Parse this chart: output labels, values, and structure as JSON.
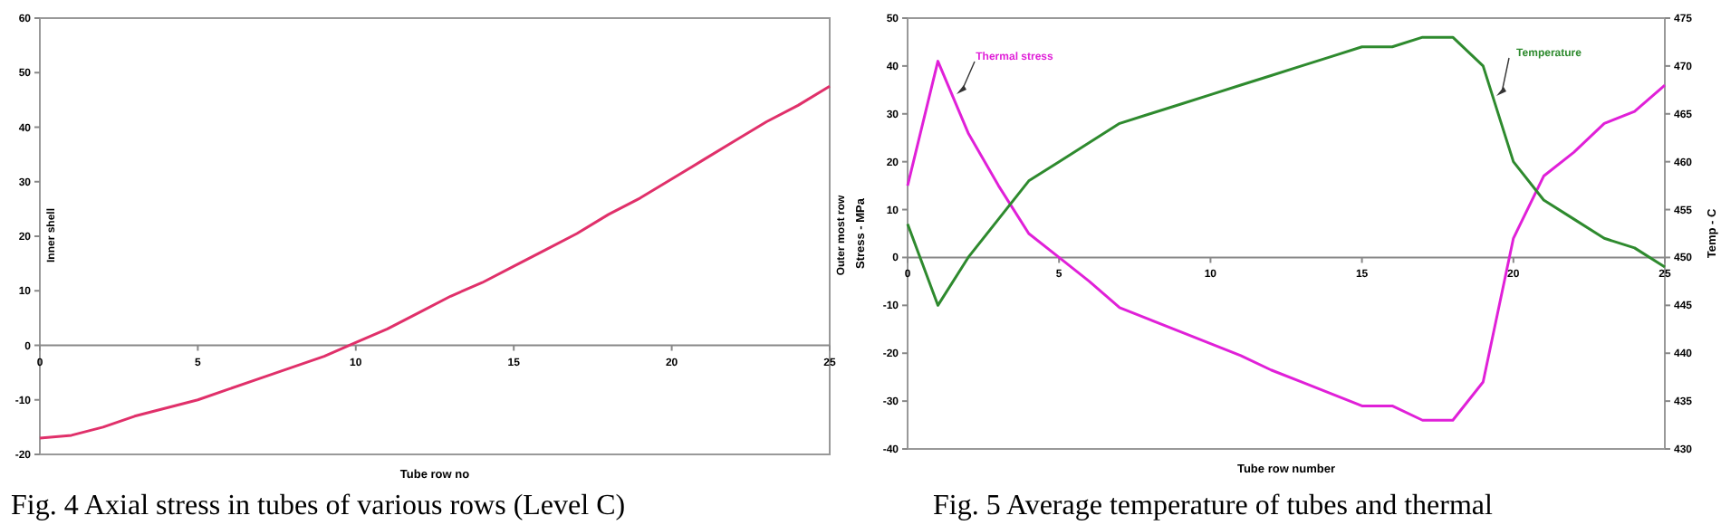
{
  "chart_data": [
    {
      "type": "line",
      "xlabel": "Tube row no",
      "annotations": [
        "Inner shell",
        "Outer most row",
        "Fig. 4   Axial stress in tubes of various rows (Level C)"
      ],
      "x": [
        0,
        1,
        2,
        3,
        4,
        5,
        6,
        7,
        8,
        9,
        10,
        11,
        12,
        13,
        14,
        15,
        16,
        17,
        18,
        19,
        20,
        21,
        22,
        23,
        24,
        25
      ],
      "series": [
        {
          "color": "#e0306a",
          "values": [
            -17,
            -16.5,
            -15,
            -13,
            -11.5,
            -10,
            -8,
            -6,
            -4,
            -2,
            0.5,
            3,
            6,
            9,
            11.5,
            14.5,
            17.5,
            20.5,
            24,
            27,
            30.5,
            34,
            37.5,
            41,
            44,
            47.5
          ]
        }
      ],
      "xlim": [
        0,
        25
      ],
      "xticks": [
        0,
        5,
        10,
        15,
        20,
        25
      ],
      "ylim": [
        -20,
        60
      ],
      "yticks": [
        -20,
        -10,
        0,
        10,
        20,
        30,
        40,
        50,
        60
      ],
      "grid": false
    },
    {
      "type": "line",
      "xlabel": "Tube row number",
      "ylabel": "Stress - MPa",
      "y2label": "Temp - C",
      "annotations": [
        "Fig. 5  Average temperature of tubes and thermal"
      ],
      "x": [
        0,
        1,
        2,
        3,
        4,
        5,
        6,
        7,
        8,
        9,
        10,
        11,
        12,
        13,
        14,
        15,
        16,
        17,
        18,
        19,
        20,
        21,
        22,
        23,
        24,
        25
      ],
      "series": [
        {
          "name": "Thermal stress",
          "color": "#e020d8",
          "values": [
            15,
            41,
            26,
            15,
            5,
            0,
            -5,
            -10.5,
            -13,
            -15.5,
            -18,
            -20.5,
            -23.5,
            -26,
            -28.5,
            -31,
            -31,
            -34,
            -34,
            -26,
            4,
            17,
            22,
            28,
            30.5,
            36
          ]
        },
        {
          "name": "Temperature",
          "color": "#2e8a2e",
          "axis": "y2",
          "values": [
            453.5,
            445,
            450,
            454,
            458,
            460,
            462,
            464,
            465,
            466,
            467,
            468,
            469,
            470,
            471,
            472,
            472,
            473,
            473,
            470,
            460,
            456,
            454,
            452,
            451,
            449
          ]
        }
      ],
      "xlim": [
        0,
        25
      ],
      "xticks": [
        0,
        5,
        10,
        15,
        20,
        25
      ],
      "ylim": [
        -40,
        50
      ],
      "yticks": [
        -40,
        -30,
        -20,
        -10,
        0,
        10,
        20,
        30,
        40,
        50
      ],
      "y2lim": [
        430,
        475
      ],
      "y2ticks": [
        430,
        435,
        440,
        445,
        450,
        455,
        460,
        465,
        470,
        475
      ],
      "grid": false
    }
  ]
}
